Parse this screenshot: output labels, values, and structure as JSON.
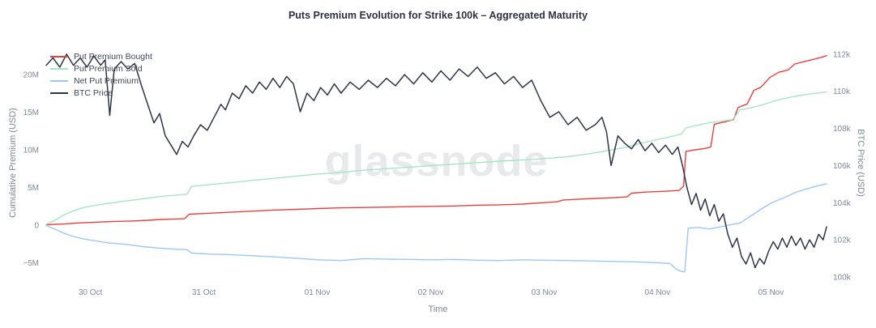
{
  "watermark": "glassnode",
  "chart_data": {
    "type": "line",
    "title": "Puts Premium Evolution for Strike 100k – Aggregated Maturity",
    "x_label": "Time",
    "x_domain": [
      0,
      6.88
    ],
    "x_ticks": [
      {
        "t": 0.39,
        "label": "30 Oct"
      },
      {
        "t": 1.39,
        "label": "31 Oct"
      },
      {
        "t": 2.39,
        "label": "01 Nov"
      },
      {
        "t": 3.39,
        "label": "02 Nov"
      },
      {
        "t": 4.39,
        "label": "03 Nov"
      },
      {
        "t": 5.39,
        "label": "04 Nov"
      },
      {
        "t": 6.39,
        "label": "05 Nov"
      }
    ],
    "left_axis": {
      "label": "Cumulative Premium (USD)",
      "unit": "millions USD",
      "range": [
        -6.88,
        23.44
      ],
      "ticks": [
        {
          "v": -5,
          "label": "−5M"
        },
        {
          "v": 0,
          "label": "0"
        },
        {
          "v": 5,
          "label": "5M"
        },
        {
          "v": 10,
          "label": "10M"
        },
        {
          "v": 15,
          "label": "15M"
        },
        {
          "v": 20,
          "label": "20M"
        }
      ]
    },
    "right_axis": {
      "label": "BTC Price (USD)",
      "unit": "thousands USD",
      "range": [
        100,
        112.3
      ],
      "ticks": [
        {
          "v": 100,
          "label": "100k"
        },
        {
          "v": 102,
          "label": "102k"
        },
        {
          "v": 104,
          "label": "104k"
        },
        {
          "v": 106,
          "label": "106k"
        },
        {
          "v": 108,
          "label": "108k"
        },
        {
          "v": 110,
          "label": "110k"
        },
        {
          "v": 112,
          "label": "112k"
        }
      ]
    },
    "legend_position": "top-left",
    "grid": false,
    "series": [
      {
        "name": "Put Premium Bought",
        "color": "#e8403d",
        "axis": "left",
        "width": 1.4,
        "points": [
          [
            0.0,
            0.05
          ],
          [
            0.15,
            0.15
          ],
          [
            0.3,
            0.3
          ],
          [
            0.45,
            0.4
          ],
          [
            0.6,
            0.5
          ],
          [
            0.75,
            0.55
          ],
          [
            0.9,
            0.65
          ],
          [
            1.0,
            0.75
          ],
          [
            1.1,
            0.8
          ],
          [
            1.22,
            0.85
          ],
          [
            1.26,
            1.45
          ],
          [
            1.4,
            1.55
          ],
          [
            1.6,
            1.7
          ],
          [
            1.8,
            1.85
          ],
          [
            2.0,
            2.0
          ],
          [
            2.2,
            2.1
          ],
          [
            2.4,
            2.2
          ],
          [
            2.6,
            2.3
          ],
          [
            2.8,
            2.35
          ],
          [
            3.0,
            2.4
          ],
          [
            3.2,
            2.45
          ],
          [
            3.4,
            2.5
          ],
          [
            3.6,
            2.55
          ],
          [
            3.8,
            2.65
          ],
          [
            4.0,
            2.7
          ],
          [
            4.2,
            2.8
          ],
          [
            4.35,
            2.95
          ],
          [
            4.5,
            3.1
          ],
          [
            4.56,
            3.35
          ],
          [
            4.7,
            3.45
          ],
          [
            4.85,
            3.55
          ],
          [
            5.0,
            3.65
          ],
          [
            5.12,
            3.75
          ],
          [
            5.16,
            4.25
          ],
          [
            5.3,
            4.4
          ],
          [
            5.45,
            4.5
          ],
          [
            5.58,
            4.6
          ],
          [
            5.62,
            5.2
          ],
          [
            5.64,
            9.8
          ],
          [
            5.72,
            10.0
          ],
          [
            5.82,
            10.2
          ],
          [
            5.86,
            10.4
          ],
          [
            5.89,
            13.4
          ],
          [
            5.98,
            13.7
          ],
          [
            6.06,
            14.0
          ],
          [
            6.1,
            15.6
          ],
          [
            6.18,
            16.1
          ],
          [
            6.24,
            17.9
          ],
          [
            6.3,
            18.3
          ],
          [
            6.38,
            19.6
          ],
          [
            6.46,
            20.3
          ],
          [
            6.54,
            20.6
          ],
          [
            6.6,
            21.4
          ],
          [
            6.68,
            21.7
          ],
          [
            6.76,
            22.0
          ],
          [
            6.84,
            22.3
          ],
          [
            6.88,
            22.5
          ]
        ]
      },
      {
        "name": "Put Premium Sold",
        "color": "#a5e5c6",
        "axis": "left",
        "width": 1.4,
        "points": [
          [
            0.0,
            0.1
          ],
          [
            0.08,
            0.7
          ],
          [
            0.16,
            1.4
          ],
          [
            0.24,
            1.9
          ],
          [
            0.32,
            2.3
          ],
          [
            0.42,
            2.6
          ],
          [
            0.55,
            2.9
          ],
          [
            0.7,
            3.2
          ],
          [
            0.85,
            3.5
          ],
          [
            1.0,
            3.8
          ],
          [
            1.15,
            4.0
          ],
          [
            1.24,
            4.1
          ],
          [
            1.28,
            5.15
          ],
          [
            1.45,
            5.4
          ],
          [
            1.6,
            5.6
          ],
          [
            1.8,
            5.9
          ],
          [
            2.0,
            6.2
          ],
          [
            2.2,
            6.5
          ],
          [
            2.4,
            6.8
          ],
          [
            2.6,
            7.0
          ],
          [
            2.8,
            7.3
          ],
          [
            3.0,
            7.5
          ],
          [
            3.2,
            7.7
          ],
          [
            3.4,
            7.9
          ],
          [
            3.6,
            8.1
          ],
          [
            3.8,
            8.3
          ],
          [
            4.0,
            8.5
          ],
          [
            4.2,
            8.65
          ],
          [
            4.4,
            8.85
          ],
          [
            4.6,
            9.1
          ],
          [
            4.8,
            9.5
          ],
          [
            4.95,
            9.9
          ],
          [
            5.1,
            10.3
          ],
          [
            5.25,
            10.9
          ],
          [
            5.4,
            11.4
          ],
          [
            5.55,
            11.9
          ],
          [
            5.6,
            12.1
          ],
          [
            5.64,
            12.9
          ],
          [
            5.75,
            13.3
          ],
          [
            5.85,
            13.6
          ],
          [
            5.95,
            13.8
          ],
          [
            6.05,
            14.0
          ],
          [
            6.12,
            15.3
          ],
          [
            6.22,
            15.6
          ],
          [
            6.3,
            15.9
          ],
          [
            6.4,
            16.4
          ],
          [
            6.5,
            16.8
          ],
          [
            6.6,
            17.1
          ],
          [
            6.7,
            17.35
          ],
          [
            6.8,
            17.55
          ],
          [
            6.88,
            17.7
          ]
        ]
      },
      {
        "name": "Net Put Premium",
        "color": "#9dc7f4",
        "axis": "left",
        "width": 1.4,
        "points": [
          [
            0.0,
            -0.05
          ],
          [
            0.08,
            -0.55
          ],
          [
            0.16,
            -1.1
          ],
          [
            0.24,
            -1.5
          ],
          [
            0.32,
            -1.8
          ],
          [
            0.42,
            -2.05
          ],
          [
            0.55,
            -2.35
          ],
          [
            0.7,
            -2.55
          ],
          [
            0.85,
            -2.85
          ],
          [
            1.0,
            -3.05
          ],
          [
            1.15,
            -3.2
          ],
          [
            1.24,
            -3.25
          ],
          [
            1.28,
            -3.7
          ],
          [
            1.45,
            -3.85
          ],
          [
            1.6,
            -3.9
          ],
          [
            1.8,
            -4.05
          ],
          [
            2.0,
            -4.2
          ],
          [
            2.2,
            -4.4
          ],
          [
            2.4,
            -4.6
          ],
          [
            2.6,
            -4.7
          ],
          [
            2.8,
            -4.45
          ],
          [
            3.0,
            -4.5
          ],
          [
            3.2,
            -4.55
          ],
          [
            3.4,
            -4.6
          ],
          [
            3.6,
            -4.55
          ],
          [
            3.8,
            -4.65
          ],
          [
            4.0,
            -4.7
          ],
          [
            4.2,
            -4.6
          ],
          [
            4.4,
            -4.65
          ],
          [
            4.6,
            -4.7
          ],
          [
            4.8,
            -4.75
          ],
          [
            4.95,
            -4.8
          ],
          [
            5.1,
            -4.85
          ],
          [
            5.25,
            -4.9
          ],
          [
            5.4,
            -5.0
          ],
          [
            5.5,
            -5.1
          ],
          [
            5.56,
            -5.9
          ],
          [
            5.6,
            -6.15
          ],
          [
            5.63,
            -6.2
          ],
          [
            5.66,
            -0.4
          ],
          [
            5.75,
            -0.3
          ],
          [
            5.85,
            -0.5
          ],
          [
            5.95,
            -0.2
          ],
          [
            6.05,
            0.1
          ],
          [
            6.12,
            0.3
          ],
          [
            6.2,
            1.1
          ],
          [
            6.3,
            2.1
          ],
          [
            6.4,
            3.0
          ],
          [
            6.5,
            3.6
          ],
          [
            6.6,
            4.3
          ],
          [
            6.7,
            4.8
          ],
          [
            6.8,
            5.2
          ],
          [
            6.88,
            5.5
          ]
        ]
      },
      {
        "name": "BTC Price",
        "color": "#2f3547",
        "axis": "right",
        "width": 1.5,
        "points": [
          [
            0.0,
            111.4
          ],
          [
            0.06,
            111.8
          ],
          [
            0.12,
            111.3
          ],
          [
            0.18,
            112.0
          ],
          [
            0.24,
            111.4
          ],
          [
            0.3,
            111.8
          ],
          [
            0.36,
            111.3
          ],
          [
            0.42,
            111.9
          ],
          [
            0.48,
            111.4
          ],
          [
            0.52,
            111.7
          ],
          [
            0.56,
            108.7
          ],
          [
            0.6,
            111.2
          ],
          [
            0.66,
            111.6
          ],
          [
            0.72,
            111.2
          ],
          [
            0.78,
            111.5
          ],
          [
            0.84,
            110.3
          ],
          [
            0.9,
            109.2
          ],
          [
            0.95,
            108.3
          ],
          [
            1.0,
            108.8
          ],
          [
            1.05,
            107.6
          ],
          [
            1.1,
            107.1
          ],
          [
            1.15,
            106.6
          ],
          [
            1.2,
            107.3
          ],
          [
            1.25,
            107.0
          ],
          [
            1.3,
            107.6
          ],
          [
            1.36,
            108.2
          ],
          [
            1.42,
            107.9
          ],
          [
            1.48,
            108.6
          ],
          [
            1.54,
            109.3
          ],
          [
            1.58,
            109.0
          ],
          [
            1.64,
            109.9
          ],
          [
            1.7,
            109.6
          ],
          [
            1.76,
            110.3
          ],
          [
            1.82,
            109.9
          ],
          [
            1.88,
            110.5
          ],
          [
            1.94,
            110.1
          ],
          [
            2.0,
            110.7
          ],
          [
            2.06,
            110.2
          ],
          [
            2.12,
            110.8
          ],
          [
            2.18,
            110.4
          ],
          [
            2.24,
            108.9
          ],
          [
            2.3,
            109.9
          ],
          [
            2.36,
            109.5
          ],
          [
            2.42,
            110.2
          ],
          [
            2.48,
            109.8
          ],
          [
            2.54,
            110.4
          ],
          [
            2.6,
            109.9
          ],
          [
            2.68,
            110.5
          ],
          [
            2.76,
            110.1
          ],
          [
            2.84,
            110.6
          ],
          [
            2.92,
            110.2
          ],
          [
            3.0,
            110.7
          ],
          [
            3.08,
            110.3
          ],
          [
            3.16,
            110.9
          ],
          [
            3.24,
            110.4
          ],
          [
            3.32,
            111.0
          ],
          [
            3.4,
            110.5
          ],
          [
            3.48,
            111.1
          ],
          [
            3.56,
            110.6
          ],
          [
            3.64,
            111.2
          ],
          [
            3.72,
            110.8
          ],
          [
            3.8,
            111.3
          ],
          [
            3.88,
            110.7
          ],
          [
            3.96,
            111.0
          ],
          [
            4.04,
            110.4
          ],
          [
            4.12,
            110.8
          ],
          [
            4.2,
            110.2
          ],
          [
            4.28,
            110.6
          ],
          [
            4.36,
            109.5
          ],
          [
            4.44,
            108.6
          ],
          [
            4.52,
            108.9
          ],
          [
            4.6,
            108.2
          ],
          [
            4.68,
            108.6
          ],
          [
            4.76,
            107.9
          ],
          [
            4.84,
            108.2
          ],
          [
            4.9,
            108.6
          ],
          [
            4.94,
            107.8
          ],
          [
            4.98,
            106.0
          ],
          [
            5.04,
            107.6
          ],
          [
            5.1,
            107.2
          ],
          [
            5.16,
            106.9
          ],
          [
            5.22,
            107.4
          ],
          [
            5.28,
            106.8
          ],
          [
            5.34,
            107.2
          ],
          [
            5.4,
            106.7
          ],
          [
            5.46,
            107.1
          ],
          [
            5.52,
            106.6
          ],
          [
            5.57,
            107.0
          ],
          [
            5.61,
            106.0
          ],
          [
            5.65,
            104.8
          ],
          [
            5.69,
            103.9
          ],
          [
            5.73,
            104.5
          ],
          [
            5.77,
            103.6
          ],
          [
            5.81,
            104.2
          ],
          [
            5.85,
            103.3
          ],
          [
            5.89,
            103.9
          ],
          [
            5.93,
            103.0
          ],
          [
            5.97,
            103.4
          ],
          [
            6.01,
            102.3
          ],
          [
            6.05,
            101.6
          ],
          [
            6.09,
            102.1
          ],
          [
            6.13,
            101.1
          ],
          [
            6.17,
            100.7
          ],
          [
            6.21,
            101.3
          ],
          [
            6.25,
            100.5
          ],
          [
            6.29,
            101.0
          ],
          [
            6.33,
            100.7
          ],
          [
            6.37,
            101.4
          ],
          [
            6.41,
            101.9
          ],
          [
            6.45,
            101.5
          ],
          [
            6.49,
            102.1
          ],
          [
            6.53,
            101.6
          ],
          [
            6.57,
            102.2
          ],
          [
            6.61,
            101.7
          ],
          [
            6.65,
            102.1
          ],
          [
            6.69,
            101.5
          ],
          [
            6.73,
            102.0
          ],
          [
            6.77,
            101.6
          ],
          [
            6.81,
            102.3
          ],
          [
            6.85,
            102.0
          ],
          [
            6.88,
            102.7
          ]
        ]
      }
    ]
  }
}
